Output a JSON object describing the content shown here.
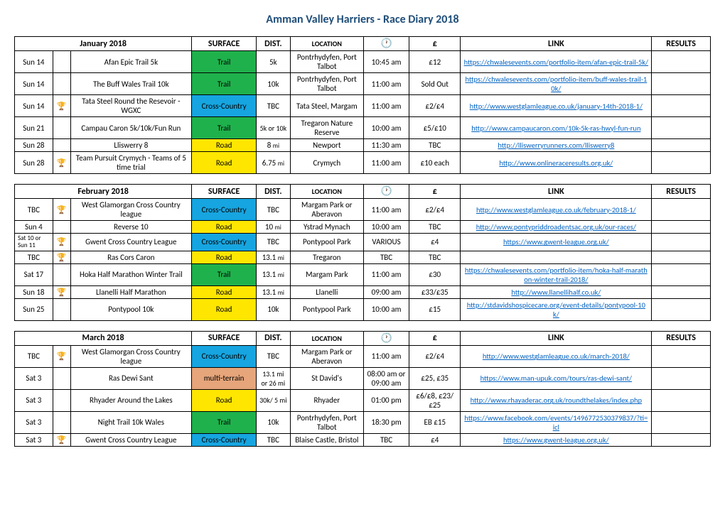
{
  "title": "Amman Valley Harriers - Race Diary 2018",
  "headers": {
    "surface": "SURFACE",
    "dist": "DIST.",
    "location": "LOCATION",
    "time_icon": "◷",
    "price": "£",
    "link": "LINK",
    "results": "RESULTS"
  },
  "surface_colors": {
    "Trail": "#1fb14c",
    "Cross-Country": "#16a5e0",
    "Road": "#ffe600",
    "multi-terrain": "#e6a57a"
  },
  "months": [
    {
      "label": "January 2018",
      "rows": [
        {
          "date": "Sun 14",
          "trophy": false,
          "name": "Afan Epic Trail 5k",
          "surface": "Trail",
          "dist": "5k",
          "location": "Pontrhydyfen, Port Talbot",
          "time": "10:45 am",
          "price": "£12",
          "link": "https://chwalesevents.com/portfolio-item/afan-epic-trail-5k/"
        },
        {
          "date": "Sun 14",
          "trophy": false,
          "name": "The Buff Wales Trail 10k",
          "surface": "Trail",
          "dist": "10k",
          "location": "Pontrhydyfen, Port Talbot",
          "time": "11:00 am",
          "price": "Sold Out",
          "link": "https://chwalesevents.com/portfolio-item/buff-wales-trail-10k/"
        },
        {
          "date": "Sun 14",
          "trophy": true,
          "name": "Tata Steel Round the Resevoir - WGXC",
          "surface": "Cross-Country",
          "dist": "TBC",
          "location": "Tata Steel, Margam",
          "time": "11:00 am",
          "price": "£2/£4",
          "link": "http://www.westglamleague.co.uk/january-14th-2018-1/"
        },
        {
          "date": "Sun 21",
          "trophy": false,
          "name": "Campau Caron 5k/10k/Fun Run",
          "surface": "Trail",
          "dist": "5k or 10k",
          "location": "Tregaron Nature Reserve",
          "time": "10:00 am",
          "price": "£5/£10",
          "link": "http://www.campaucaron.com/10k-5k-ras-hwyl-fun-run"
        },
        {
          "date": "Sun 28",
          "trophy": false,
          "name": "Lliswerry 8",
          "surface": "Road",
          "dist": "8 mi",
          "location": "Newport",
          "time": "11:30 am",
          "price": "TBC",
          "link": "http://lliswerryrunners.com/lliswerry8"
        },
        {
          "date": "Sun 28",
          "trophy": true,
          "name": "Team Pursuit Crymych - Teams of 5 time trial",
          "surface": "Road",
          "dist": "6.75 mi",
          "location": "Crymych",
          "time": "11:00 am",
          "price": "£10 each",
          "link": "http://www.onlineraceresults.org.uk/"
        }
      ]
    },
    {
      "label": "February 2018",
      "rows": [
        {
          "date": "TBC",
          "trophy": true,
          "name": "West Glamorgan Cross Country league",
          "surface": "Cross-Country",
          "dist": "TBC",
          "location": "Margam Park or Aberavon",
          "time": "11:00 am",
          "price": "£2/£4",
          "link": "http://www.westglamleague.co.uk/february-2018-1/"
        },
        {
          "date": "Sun 4",
          "trophy": false,
          "name": "Reverse 10",
          "surface": "Road",
          "dist": "10 mi",
          "location": "Ystrad Mynach",
          "time": "10:00 am",
          "price": "TBC",
          "link": "http://www.pontypriddroadentsac.org.uk/our-races/"
        },
        {
          "date": "Sat 10 or Sun 11",
          "trophy": true,
          "small_date": true,
          "name": "Gwent Cross Country League",
          "surface": "Cross-Country",
          "dist": "TBC",
          "location": "Pontypool Park",
          "time": "VARIOUS",
          "price": "£4",
          "link": "https://www.gwent-league.org.uk/"
        },
        {
          "date": "TBC",
          "trophy": true,
          "name": "Ras Cors Caron",
          "surface": "Road",
          "dist": "13.1 mi",
          "location": "Tregaron",
          "time": "TBC",
          "price": "TBC",
          "link": ""
        },
        {
          "date": "Sat 17",
          "trophy": false,
          "name": "Hoka Half Marathon Winter Trail",
          "surface": "Trail",
          "dist": "13.1 mi",
          "location": "Margam Park",
          "time": "11:00 am",
          "price": "£30",
          "link": "https://chwalesevents.com/portfolio-item/hoka-half-marathon-winter-trail-2018/"
        },
        {
          "date": "Sun 18",
          "trophy": true,
          "name": "Llanelli Half Marathon",
          "surface": "Road",
          "dist": "13.1 mi",
          "location": "Llanelli",
          "time": "09:00 am",
          "price": "£33/£35",
          "link": "http://www.llanellihalf.co.uk/"
        },
        {
          "date": "Sun 25",
          "trophy": false,
          "name": "Pontypool 10k",
          "surface": "Road",
          "dist": "10k",
          "location": "Pontypool Park",
          "time": "10:00 am",
          "price": "£15",
          "link": "http://stdavidshospicecare.org/event-details/pontypool-10k/"
        }
      ]
    },
    {
      "label": "March 2018",
      "rows": [
        {
          "date": "TBC",
          "trophy": true,
          "name": "West Glamorgan Cross Country league",
          "surface": "Cross-Country",
          "dist": "TBC",
          "location": "Margam Park or Aberavon",
          "time": "11:00 am",
          "price": "£2/£4",
          "link": "http://www.westglamleague.co.uk/march-2018/"
        },
        {
          "date": "Sat 3",
          "trophy": false,
          "name": "Ras Dewi Sant",
          "surface": "multi-terrain",
          "dist": "13.1 mi or 26 mi",
          "location": "St David's",
          "time": "08:00 am or 09:00 am",
          "price": "£25, £35",
          "link": "https://www.man-upuk.com/tours/ras-dewi-sant/"
        },
        {
          "date": "Sat 3",
          "trophy": false,
          "name": "Rhyader Around the Lakes",
          "surface": "Road",
          "dist": "30k/ 5 mi",
          "location": "Rhyader",
          "time": "01:00 pm",
          "price": "£6/£8, £23/£25",
          "link": "http://www.rhayaderac.org.uk/roundthelakes/index.php"
        },
        {
          "date": "Sat 3",
          "trophy": false,
          "name": "Night Trail 10k Wales",
          "surface": "Trail",
          "dist": "10k",
          "location": "Pontrhydyfen, Port Talbot",
          "time": "18:30 pm",
          "price": "EB £15",
          "link": "https://www.facebook.com/events/1496772530379837/?ti=icl"
        },
        {
          "date": "Sat 3",
          "trophy": true,
          "name": "Gwent Cross Country League",
          "surface": "Cross-Country",
          "dist": "TBC",
          "location": "Blaise Castle, Bristol",
          "time": "TBC",
          "price": "£4",
          "link": "https://www.gwent-league.org.uk/"
        }
      ]
    }
  ]
}
